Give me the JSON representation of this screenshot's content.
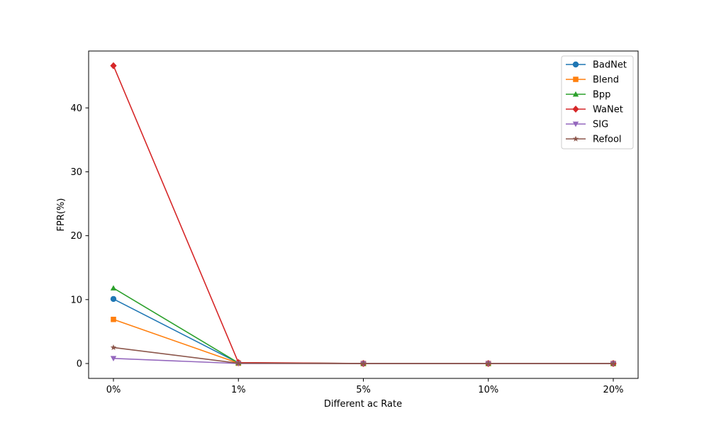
{
  "chart_data": {
    "type": "line",
    "title": "",
    "xlabel": "Different ac Rate",
    "ylabel": "FPR(%)",
    "categories": [
      "0%",
      "1%",
      "5%",
      "10%",
      "20%"
    ],
    "ylim": [
      -2.33,
      48.9
    ],
    "yticks": [
      0,
      10,
      20,
      30,
      40
    ],
    "grid": false,
    "legend_position": "top-right",
    "series": [
      {
        "name": "BadNet",
        "color": "#1f77b4",
        "marker": "circle",
        "values": [
          10.1,
          0.1,
          0.0,
          0.0,
          0.0
        ]
      },
      {
        "name": "Blend",
        "color": "#ff7f0e",
        "marker": "square",
        "values": [
          6.9,
          0.05,
          0.0,
          0.0,
          0.0
        ]
      },
      {
        "name": "Bpp",
        "color": "#2ca02c",
        "marker": "triangle-up",
        "values": [
          11.8,
          0.1,
          0.0,
          0.0,
          0.0
        ]
      },
      {
        "name": "WaNet",
        "color": "#d62728",
        "marker": "diamond",
        "values": [
          46.6,
          0.15,
          0.0,
          0.0,
          0.0
        ]
      },
      {
        "name": "SIG",
        "color": "#9467bd",
        "marker": "triangle-down",
        "values": [
          0.8,
          0.0,
          0.0,
          0.0,
          0.0
        ]
      },
      {
        "name": "Refool",
        "color": "#8c564b",
        "marker": "star",
        "values": [
          2.5,
          0.05,
          0.0,
          0.0,
          0.0
        ]
      }
    ]
  }
}
